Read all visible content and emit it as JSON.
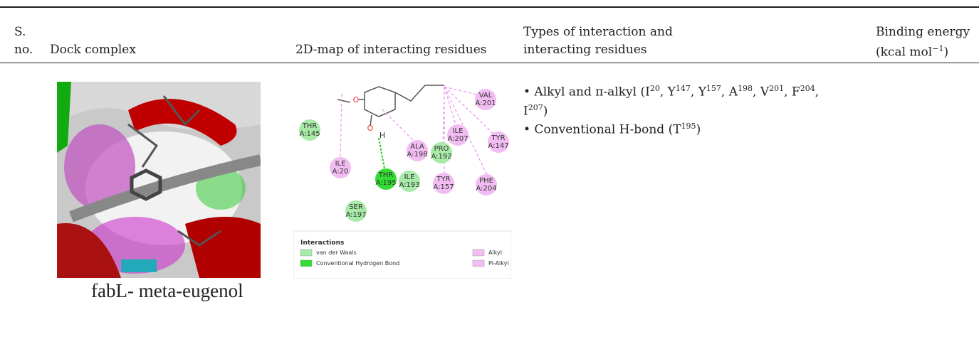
{
  "table": {
    "header": {
      "sno": [
        "S.",
        "no."
      ],
      "dock": "Dock complex",
      "map": "2D-map of interacting residues",
      "types": [
        "Types of interaction and",
        "interacting residues"
      ],
      "energy": [
        {
          "t": "Binding energy"
        },
        {
          "t": "(kcal mol"
        },
        {
          "sup": "−1"
        },
        {
          "t": ")"
        }
      ]
    },
    "rows": [
      {
        "caption": "fabL- meta-eugenol",
        "map": {
          "atoms": [
            "O",
            "O",
            "H"
          ],
          "residues": [
            {
              "name": "THR",
              "id": "A:145",
              "type": "vdw"
            },
            {
              "name": "ILE",
              "id": "A:20",
              "type": "alkyl"
            },
            {
              "name": "THR",
              "id": "A:195",
              "type": "hbond"
            },
            {
              "name": "ILE",
              "id": "A:193",
              "type": "vdw"
            },
            {
              "name": "ALA",
              "id": "A:198",
              "type": "alkyl"
            },
            {
              "name": "PRO",
              "id": "A:192",
              "type": "vdw"
            },
            {
              "name": "ILE",
              "id": "A:207",
              "type": "alkyl"
            },
            {
              "name": "TYR",
              "id": "A:157",
              "type": "alkyl"
            },
            {
              "name": "PHE",
              "id": "A:204",
              "type": "alkyl"
            },
            {
              "name": "TYR",
              "id": "A:147",
              "type": "alkyl"
            },
            {
              "name": "VAL",
              "id": "A:201",
              "type": "alkyl"
            },
            {
              "name": "SER",
              "id": "A:197",
              "type": "vdw"
            }
          ],
          "legend": {
            "title": "Interactions",
            "items": [
              {
                "label": "van der Waals",
                "type": "vdw"
              },
              {
                "label": "Conventional Hydrogen Bond",
                "type": "hbond"
              },
              {
                "label": "Alkyl",
                "type": "alkyl"
              },
              {
                "label": "Pi-Alkyl",
                "type": "alkyl"
              }
            ]
          }
        },
        "interactions": [
          [
            {
              "t": "• Alkyl and π-alkyl (I"
            },
            {
              "sup": "20"
            },
            {
              "t": ", Y"
            },
            {
              "sup": "147"
            },
            {
              "t": ", Y"
            },
            {
              "sup": "157"
            },
            {
              "t": ", A"
            },
            {
              "sup": "198"
            },
            {
              "t": ", V"
            },
            {
              "sup": "201"
            },
            {
              "t": ", F"
            },
            {
              "sup": "204"
            },
            {
              "t": ","
            },
            {
              "br": true
            },
            {
              "t": "I"
            },
            {
              "sup": "207"
            },
            {
              "t": ")"
            }
          ],
          [
            {
              "t": "• Conventional H-bond (T"
            },
            {
              "sup": "195"
            },
            {
              "t": ")"
            }
          ]
        ]
      }
    ]
  }
}
